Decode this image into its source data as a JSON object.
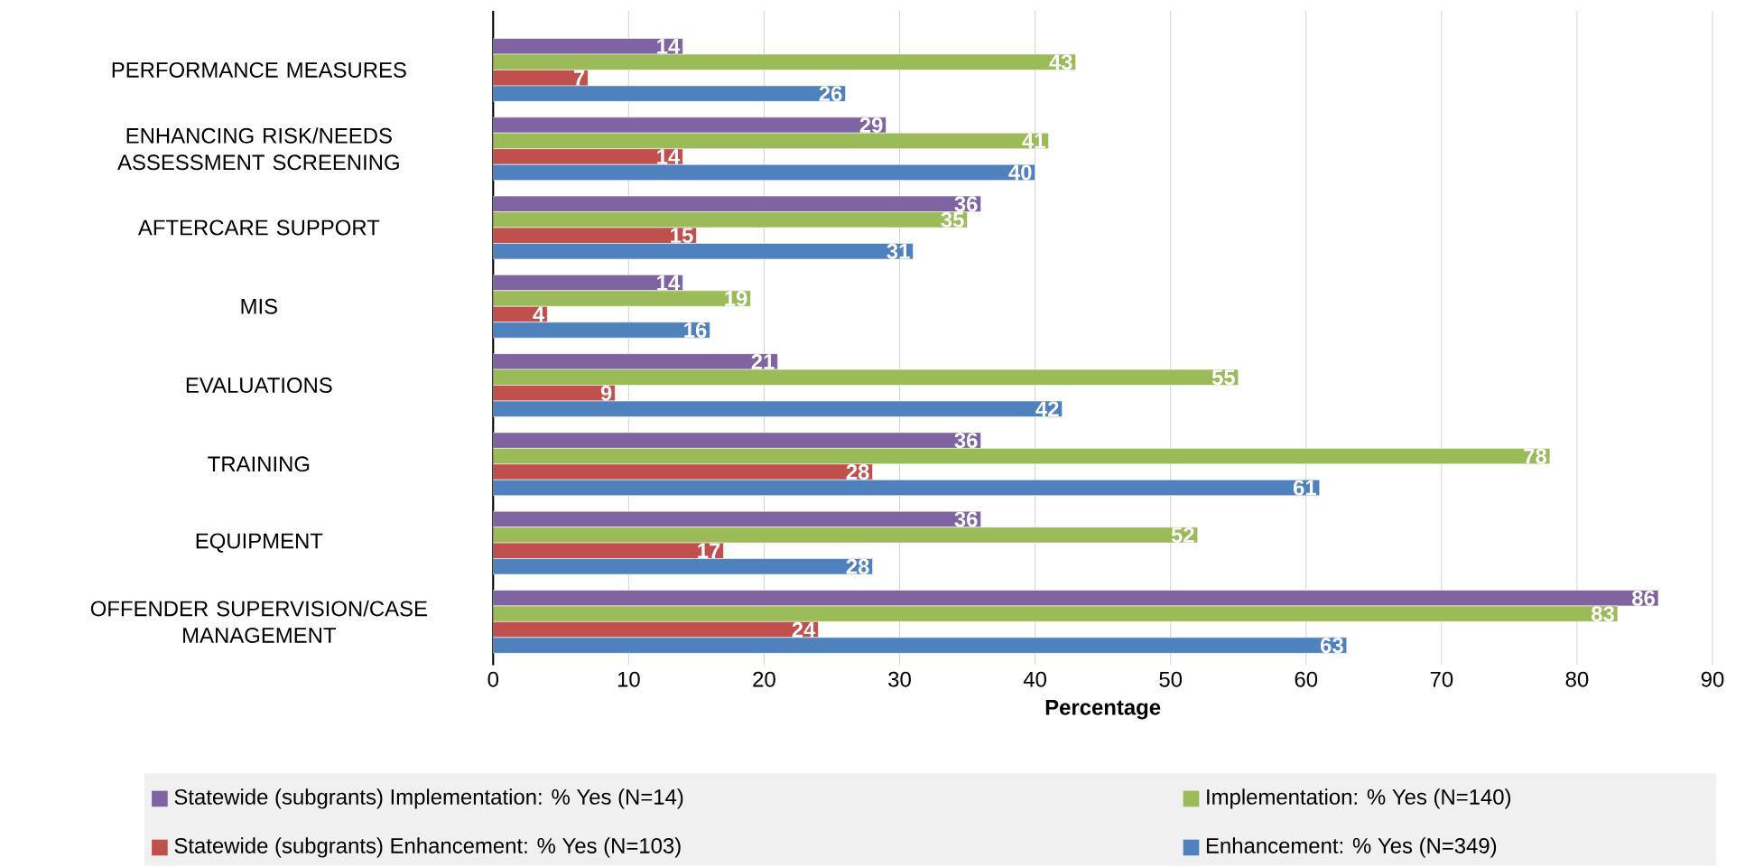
{
  "chart_data": {
    "type": "bar",
    "orientation": "horizontal",
    "xlabel": "Percentage",
    "categories": [
      "PERFORMANCE MEASURES",
      "ENHANCING RISK/NEEDS ASSESSMENT SCREENING",
      "AFTERCARE SUPPORT",
      "MIS",
      "EVALUATIONS",
      "TRAINING",
      "EQUIPMENT",
      "OFFENDER SUPERVISION/CASE MANAGEMENT"
    ],
    "series": [
      {
        "name": "Statewide (subgrants) Implementation: % Yes  (N=14)",
        "color": "#8064a2",
        "values": [
          14,
          29,
          36,
          14,
          21,
          36,
          36,
          86
        ]
      },
      {
        "name": "Implementation: % Yes  (N=140)",
        "color": "#9bbb59",
        "values": [
          43,
          41,
          35,
          19,
          55,
          78,
          52,
          83
        ]
      },
      {
        "name": "Statewide (subgrants) Enhancement:  % Yes  (N=103)",
        "color": "#c0504d",
        "values": [
          7,
          14,
          15,
          4,
          9,
          28,
          17,
          24
        ]
      },
      {
        "name": "Enhancement: % Yes  (N=349)",
        "color": "#4f81bd",
        "values": [
          26,
          40,
          31,
          16,
          42,
          61,
          28,
          63
        ]
      }
    ],
    "xlim": [
      0,
      90
    ],
    "xticks": [
      0,
      10,
      20,
      30,
      40,
      50,
      60,
      70,
      80,
      90
    ],
    "grid": "x",
    "legend": "bottom",
    "data_labels": true
  }
}
